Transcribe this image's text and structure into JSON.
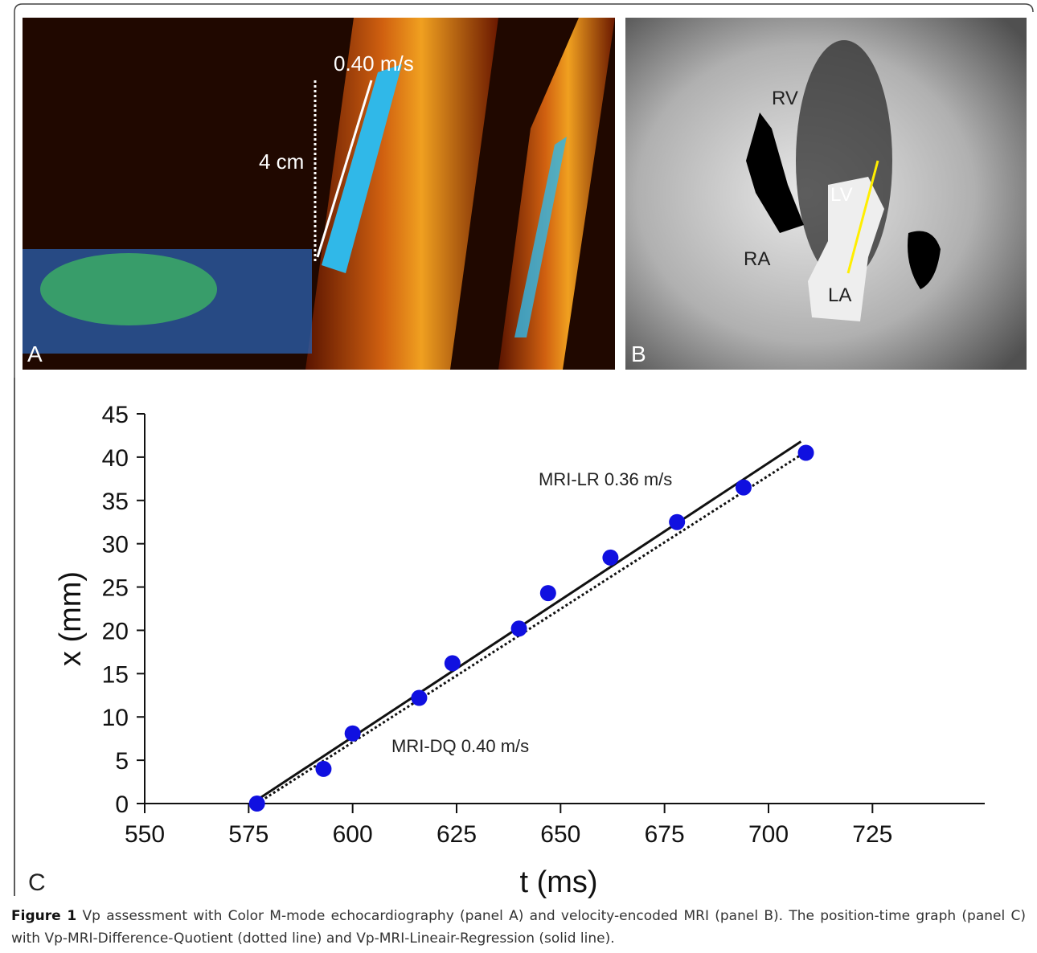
{
  "panel_a": {
    "label": "A",
    "velocity": "0.40 m/s",
    "distance": "4 cm"
  },
  "panel_b": {
    "label": "B",
    "rv": "RV",
    "lv": "LV",
    "ra": "RA",
    "la": "LA"
  },
  "chart_data": {
    "type": "scatter",
    "panel_label": "C",
    "x_label": "t (ms)",
    "y_label": "x (mm)",
    "x": [
      577,
      593,
      600,
      616,
      624,
      640,
      647,
      662,
      678,
      694,
      709
    ],
    "values": [
      0,
      4.0,
      8.1,
      12.2,
      16.2,
      20.2,
      24.3,
      28.4,
      32.5,
      36.5,
      40.5
    ],
    "color": "#1010e0",
    "fits": [
      {
        "style": "solid",
        "x": [
          575.7,
          707.8
        ],
        "values": [
          0,
          41.8
        ]
      },
      {
        "style": "dotted",
        "x": [
          577,
          708.6
        ],
        "values": [
          0,
          40.5
        ]
      }
    ],
    "annotations": [
      "MRI-LR 0.36 m/s",
      "MRI-DQ 0.40 m/s"
    ],
    "xlim": [
      550,
      752
    ],
    "ylim": [
      0,
      45
    ],
    "xticks": [
      550,
      575,
      600,
      625,
      650,
      675,
      700,
      725
    ],
    "yticks": [
      0,
      5,
      10,
      15,
      20,
      25,
      30,
      35,
      40,
      45
    ]
  },
  "caption": {
    "label": "Figure 1",
    "text": "Vp assessment with Color M-mode echocardiography (panel A) and velocity-encoded MRI (panel B). The position-time graph (panel C) with Vp-MRI-Difference-Quotient (dotted line) and Vp-MRI-Lineair-Regression (solid line)."
  }
}
